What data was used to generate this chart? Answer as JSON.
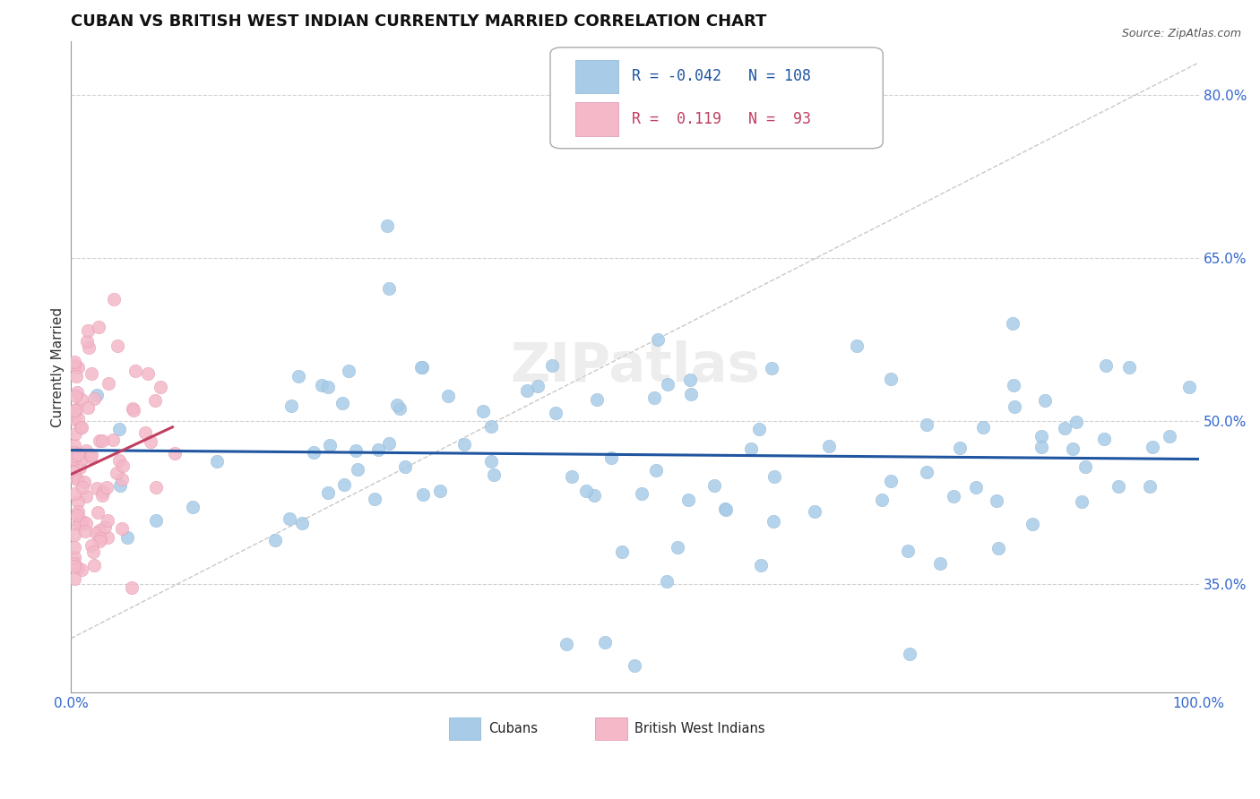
{
  "title": "CUBAN VS BRITISH WEST INDIAN CURRENTLY MARRIED CORRELATION CHART",
  "source_text": "Source: ZipAtlas.com",
  "ylabel": "Currently Married",
  "xlim": [
    0.0,
    1.0
  ],
  "ylim": [
    0.25,
    0.85
  ],
  "yticks": [
    0.35,
    0.5,
    0.65,
    0.8
  ],
  "ytick_labels": [
    "35.0%",
    "50.0%",
    "65.0%",
    "80.0%"
  ],
  "legend_r_blue": "-0.042",
  "legend_n_blue": "108",
  "legend_r_pink": " 0.119",
  "legend_n_pink": " 93",
  "blue_color": "#a8cce8",
  "pink_color": "#f4b8c8",
  "trend_blue_color": "#2055a0",
  "trend_pink_color": "#c04060",
  "background_color": "#ffffff",
  "grid_color": "#cccccc",
  "title_fontsize": 13,
  "label_fontsize": 11,
  "tick_fontsize": 11,
  "legend_fontsize": 12
}
